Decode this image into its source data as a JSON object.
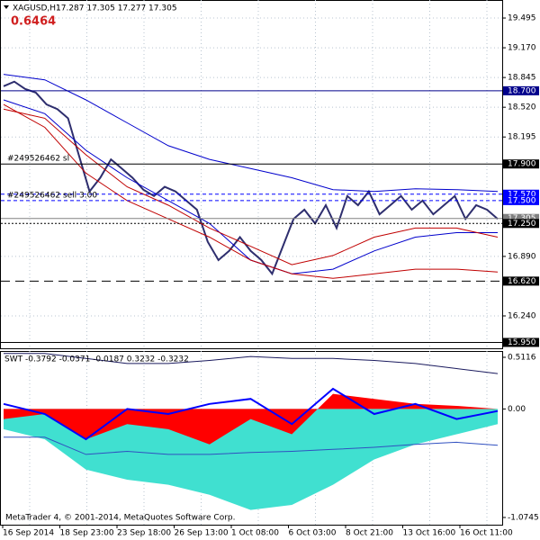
{
  "header": {
    "symbol": "XAGUSD,H1",
    "ohlc": "17.287 17.305 17.277 17.305",
    "value": "0.6464"
  },
  "chart_data": [
    {
      "type": "line",
      "xticks": [
        "16 Sep 2014",
        "18 Sep 23:00",
        "23 Sep 18:00",
        "26 Sep 13:00",
        "1 Oct 08:00",
        "6 Oct 03:00",
        "8 Oct 21:00",
        "13 Oct 16:00",
        "16 Oct 11:00"
      ],
      "ylim": [
        15.876,
        19.692
      ],
      "yticks": [
        {
          "value": 19.495,
          "label": "19.495"
        },
        {
          "value": 19.17,
          "label": "19.170"
        },
        {
          "value": 18.845,
          "label": "18.845"
        },
        {
          "value": 18.52,
          "label": "18.520"
        },
        {
          "value": 18.195,
          "label": "18.195"
        },
        {
          "value": 16.89,
          "label": "16.890"
        },
        {
          "value": 16.24,
          "label": "16.240"
        }
      ],
      "grid": true,
      "levels": [
        {
          "value": 18.7,
          "label": "18.700",
          "color": "#00008b",
          "dash": "solid"
        },
        {
          "value": 17.9,
          "label": "17.900",
          "color": "#000000",
          "dash": "solid"
        },
        {
          "value": 17.57,
          "label": "17.570",
          "color": "#0000ff",
          "dash": "dashed"
        },
        {
          "value": 17.5,
          "label": "17.500",
          "color": "#0000ff",
          "dash": "dashed"
        },
        {
          "value": 17.305,
          "label": "17.305",
          "color": "#808080",
          "dash": "solid"
        },
        {
          "value": 17.25,
          "label": "17.250",
          "color": "#000000",
          "dash": "dotted"
        },
        {
          "value": 16.62,
          "label": "16.620",
          "color": "#000000",
          "dash": "longdash"
        },
        {
          "value": 15.95,
          "label": "15.950",
          "color": "#000000",
          "dash": "solid"
        }
      ],
      "annotations": [
        {
          "text": "#249526462 sl",
          "value": 17.9
        },
        {
          "text": "#249526462 sell 3.00",
          "value": 17.5
        }
      ],
      "series": [
        {
          "color": "#2e2e6e",
          "width": 2,
          "values": [
            18.75,
            18.8,
            18.72,
            18.68,
            18.55,
            18.5,
            18.4,
            18.0,
            17.6,
            17.75,
            17.95,
            17.85,
            17.75,
            17.62,
            17.55,
            17.65,
            17.6,
            17.5,
            17.4,
            17.05,
            16.85,
            16.95,
            17.1,
            16.95,
            16.85,
            16.7,
            17.0,
            17.3,
            17.4,
            17.25,
            17.45,
            17.2,
            17.55,
            17.45,
            17.6,
            17.35,
            17.45,
            17.55,
            17.4,
            17.5,
            17.35,
            17.45,
            17.55,
            17.3,
            17.45,
            17.4,
            17.3
          ]
        },
        {
          "color": "#0000cc",
          "width": 1,
          "values": [
            18.88,
            18.82,
            18.6,
            18.35,
            18.1,
            17.95,
            17.85,
            17.75,
            17.62,
            17.6,
            17.63,
            17.62,
            17.6
          ]
        },
        {
          "color": "#0000cc",
          "width": 1,
          "values": [
            18.6,
            18.45,
            18.05,
            17.75,
            17.5,
            17.25,
            16.85,
            16.7,
            16.75,
            16.95,
            17.1,
            17.15,
            17.15
          ]
        },
        {
          "color": "#c00000",
          "width": 1,
          "values": [
            18.5,
            18.4,
            18.0,
            17.65,
            17.45,
            17.2,
            17.0,
            16.8,
            16.9,
            17.1,
            17.2,
            17.2,
            17.1
          ]
        },
        {
          "color": "#c00000",
          "width": 1,
          "values": [
            18.55,
            18.3,
            17.8,
            17.5,
            17.3,
            17.1,
            16.85,
            16.7,
            16.65,
            16.7,
            16.75,
            16.75,
            16.72
          ]
        }
      ]
    },
    {
      "type": "line",
      "title": "SWT -0.3792 -0.0371 -0.0187 0.3232 -0.3232",
      "footer": "MetaTrader 4, © 2001-2014, MetaQuotes Software Corp.",
      "ylim": [
        -1.146,
        0.574
      ],
      "yticks": [
        0.5116,
        {
          "value": 0,
          "label": "0.00"
        },
        -1.0745
      ],
      "series": [
        {
          "style": "area",
          "color": "#40e0d0",
          "values": [
            -0.2,
            -0.3,
            -0.6,
            -0.7,
            -0.75,
            -0.85,
            -1.0,
            -0.95,
            -0.75,
            -0.5,
            -0.35,
            -0.25,
            -0.15
          ]
        },
        {
          "style": "area",
          "color": "#ff0000",
          "values": [
            -0.1,
            -0.05,
            -0.3,
            -0.15,
            -0.2,
            -0.35,
            -0.1,
            -0.25,
            0.15,
            0.1,
            0.05,
            0.03,
            0.0
          ]
        },
        {
          "style": "line",
          "color": "#0000ff",
          "width": 2,
          "values": [
            0.05,
            -0.05,
            -0.3,
            0.0,
            -0.05,
            0.05,
            0.1,
            -0.15,
            0.2,
            -0.05,
            0.05,
            -0.1,
            -0.02
          ]
        },
        {
          "style": "line",
          "color": "#1a1a5e",
          "width": 1,
          "values": [
            0.55,
            0.55,
            0.5,
            0.45,
            0.45,
            0.48,
            0.52,
            0.5,
            0.5,
            0.48,
            0.45,
            0.4,
            0.35
          ]
        },
        {
          "style": "line",
          "color": "#3050c0",
          "width": 1,
          "values": [
            -0.28,
            -0.28,
            -0.45,
            -0.42,
            -0.45,
            -0.45,
            -0.43,
            -0.42,
            -0.4,
            -0.38,
            -0.35,
            -0.33,
            -0.36
          ]
        }
      ]
    }
  ]
}
